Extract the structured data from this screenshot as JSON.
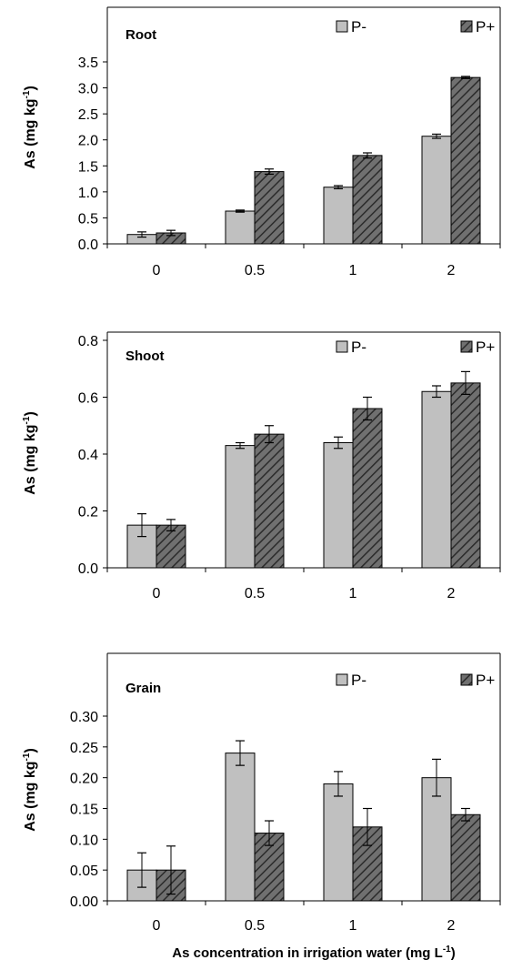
{
  "colors": {
    "p_minus_fill": "#c0c0c0",
    "p_plus_fill": "#707070",
    "p_plus_hatch": "#2b2b2b",
    "axis": "#000000"
  },
  "xlabel": "As concentration in irrigation water (mg L",
  "xlabel_sup": "-1",
  "xlabel_end": ")",
  "chart_data": [
    {
      "type": "bar",
      "title": "Root",
      "categories": [
        "0",
        "0.5",
        "1",
        "2"
      ],
      "series": [
        {
          "name": "P-",
          "values": [
            0.18,
            0.63,
            1.09,
            2.07
          ],
          "errors": [
            0.05,
            0.02,
            0.03,
            0.04
          ]
        },
        {
          "name": "P+",
          "values": [
            0.21,
            1.39,
            1.7,
            3.2
          ],
          "errors": [
            0.05,
            0.05,
            0.05,
            0.02
          ]
        }
      ],
      "ylabel": "As (mg kg",
      "ylabel_sup": "-1",
      "ylabel_end": ")",
      "ylim": [
        0,
        3.5
      ],
      "yticks": [
        "0.0",
        "0.5",
        "1.0",
        "1.5",
        "2.0",
        "2.5",
        "3.0",
        "3.5"
      ],
      "grid": false,
      "legend": "top-right"
    },
    {
      "type": "bar",
      "title": "Shoot",
      "categories": [
        "0",
        "0.5",
        "1",
        "2"
      ],
      "series": [
        {
          "name": "P-",
          "values": [
            0.15,
            0.43,
            0.44,
            0.62
          ],
          "errors": [
            0.04,
            0.01,
            0.02,
            0.02
          ]
        },
        {
          "name": "P+",
          "values": [
            0.15,
            0.47,
            0.56,
            0.65
          ],
          "errors": [
            0.02,
            0.03,
            0.04,
            0.04
          ]
        }
      ],
      "ylabel": "As (mg kg",
      "ylabel_sup": "-1",
      "ylabel_end": ")",
      "ylim": [
        0,
        0.8
      ],
      "yticks": [
        "0.0",
        "0.2",
        "0.4",
        "0.6",
        "0.8"
      ],
      "grid": false,
      "legend": "top-right"
    },
    {
      "type": "bar",
      "title": "Grain",
      "categories": [
        "0",
        "0.5",
        "1",
        "2"
      ],
      "series": [
        {
          "name": "P-",
          "values": [
            0.05,
            0.24,
            0.19,
            0.2
          ],
          "errors": [
            0.028,
            0.02,
            0.02,
            0.03
          ]
        },
        {
          "name": "P+",
          "values": [
            0.05,
            0.11,
            0.12,
            0.14
          ],
          "errors": [
            0.039,
            0.02,
            0.03,
            0.01
          ]
        }
      ],
      "ylabel": "As (mg kg",
      "ylabel_sup": "-1",
      "ylabel_end": ")",
      "ylim": [
        0,
        0.3
      ],
      "yticks": [
        "0.00",
        "0.05",
        "0.10",
        "0.15",
        "0.20",
        "0.25",
        "0.30"
      ],
      "grid": false,
      "legend": "top-right"
    }
  ]
}
